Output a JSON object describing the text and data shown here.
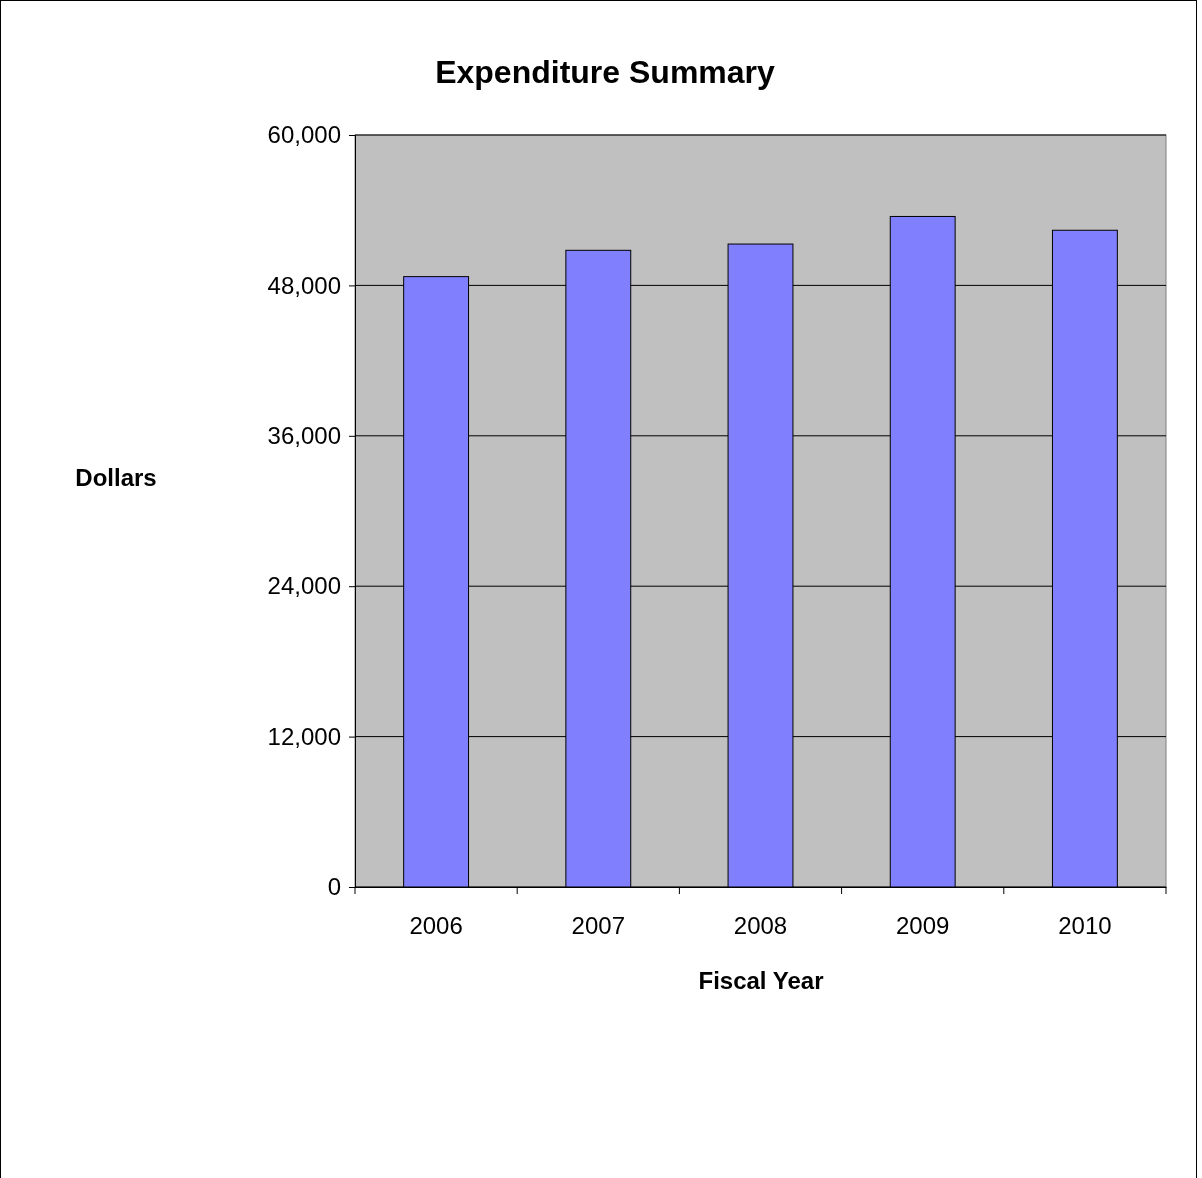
{
  "chart_data": {
    "type": "bar",
    "title": "Expenditure Summary",
    "xlabel": "Fiscal Year",
    "ylabel": "Dollars",
    "categories": [
      "2006",
      "2007",
      "2008",
      "2009",
      "2010"
    ],
    "series": [
      {
        "color": "#8080ff",
        "values": [
          48700,
          50800,
          51300,
          53500,
          52400
        ]
      }
    ],
    "ylim": [
      0,
      60000
    ],
    "yticks": [
      0,
      {
        "value": 12000,
        "label": "12,000"
      },
      {
        "value": 24000,
        "label": "24,000"
      },
      {
        "value": 36000,
        "label": "36,000"
      },
      {
        "value": 48000,
        "label": "48,000"
      },
      {
        "value": 60000,
        "label": "60,000"
      }
    ],
    "grid": "y"
  }
}
